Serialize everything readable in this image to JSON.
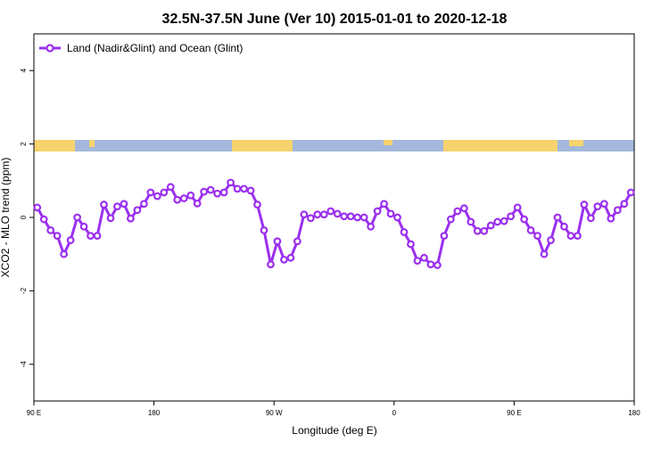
{
  "chart_data": {
    "type": "line",
    "title": "32.5N-37.5N June (Ver 10)   2015-01-01 to 2020-12-18",
    "x_label": "Longitude (deg E)",
    "y_label": "XCO2 - MLO trend (ppm)",
    "x": [
      92.5,
      97.5,
      102.5,
      107.5,
      112.5,
      117.5,
      122.5,
      127.5,
      132.5,
      137.5,
      142.5,
      147.5,
      152.5,
      157.5,
      162.5,
      167.5,
      172.5,
      177.5,
      182.5,
      187.5,
      192.5,
      197.5,
      202.5,
      207.5,
      212.5,
      217.5,
      222.5,
      227.5,
      232.5,
      237.5,
      242.5,
      247.5,
      252.5,
      257.5,
      262.5,
      267.5,
      272.5,
      277.5,
      282.5,
      287.5,
      292.5,
      297.5,
      302.5,
      307.5,
      312.5,
      317.5,
      322.5,
      327.5,
      332.5,
      337.5,
      342.5,
      347.5,
      352.5,
      357.5,
      362.5,
      367.5,
      372.5,
      377.5,
      382.5,
      387.5,
      392.5,
      397.5,
      402.5,
      407.5,
      412.5,
      417.5,
      422.5,
      427.5,
      432.5,
      437.5,
      442.5,
      447.5,
      452.5,
      457.5,
      462.5,
      467.5,
      472.5,
      477.5,
      482.5,
      487.5,
      492.5,
      497.5,
      502.5,
      507.5,
      512.5,
      517.5,
      522.5,
      527.5,
      532.5,
      537.5
    ],
    "series": [
      {
        "name": "Land (Nadir&Glint) and Ocean (Glint)",
        "color": "#9b30f0",
        "values": [
          0.27,
          -0.05,
          -0.35,
          -0.5,
          -1.0,
          -0.62,
          0,
          -0.25,
          -0.5,
          -0.5,
          0.35,
          -0.02,
          0.3,
          0.37,
          -0.03,
          0.2,
          0.37,
          0.68,
          0.58,
          0.68,
          0.83,
          0.48,
          0.52,
          0.6,
          0.38,
          0.7,
          0.75,
          0.65,
          0.68,
          0.95,
          0.78,
          0.78,
          0.73,
          0.35,
          -0.35,
          -1.28,
          -0.65,
          -1.15,
          -1.1,
          -0.65,
          0.08,
          -0.02,
          0.08,
          0.08,
          0.17,
          0.1,
          0.03,
          0.03,
          0,
          0,
          -0.25,
          0.17,
          0.37,
          0.1,
          0,
          -0.4,
          -0.73,
          -1.18,
          -1.1,
          -1.28,
          -1.3,
          -0.5,
          -0.05,
          0.17,
          0.25,
          -0.12,
          -0.37,
          -0.37,
          -0.22,
          -0.12,
          -0.1,
          0.03,
          0.27,
          -0.05,
          -0.35,
          -0.5,
          -1.0,
          -0.62,
          0,
          -0.25,
          -0.5,
          -0.5,
          0.35,
          -0.02,
          0.3,
          0.37,
          -0.03,
          0.2,
          0.37,
          0.68
        ]
      }
    ],
    "xlim": [
      90,
      540
    ],
    "xticks": [
      {
        "value": 90,
        "label": "90 E"
      },
      180,
      {
        "value": 270,
        "label": "90 W"
      },
      {
        "value": 360,
        "label": "0"
      },
      {
        "value": 450,
        "label": "90 E"
      },
      {
        "value": 540,
        "label": "180"
      }
    ],
    "ylim": [
      -5,
      5
    ],
    "yticks": [
      -4,
      -2,
      0,
      2,
      4
    ],
    "legend": "top-left"
  }
}
